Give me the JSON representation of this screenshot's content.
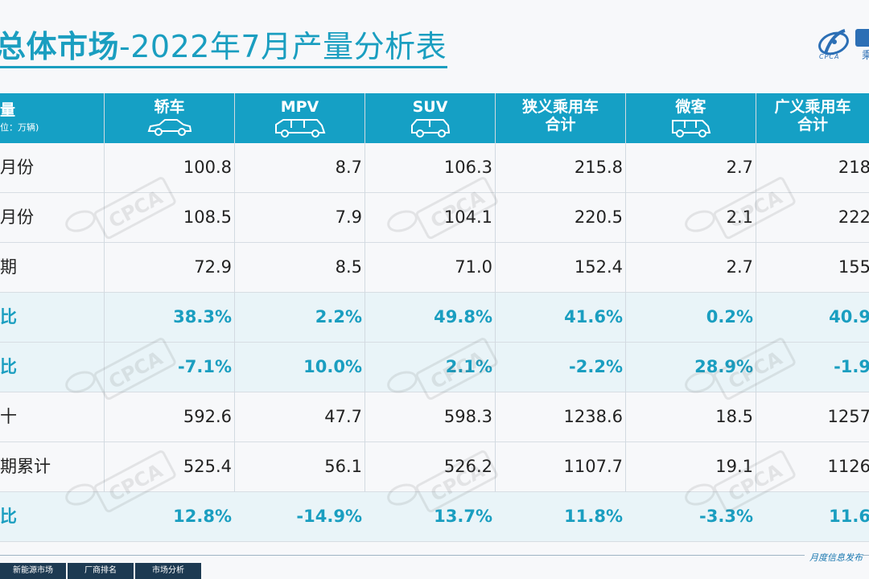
{
  "title": {
    "bold": "总体市场",
    "rest": "-2022年7月产量分析表"
  },
  "logo": {
    "text": "乘",
    "sub": "CPCA"
  },
  "watermark_text": "CPCA",
  "header": {
    "first": "量",
    "unit": "位：万辆)",
    "cols": [
      {
        "label": "轿车",
        "icon": "sedan-icon"
      },
      {
        "label": "MPV",
        "icon": "mpv-icon"
      },
      {
        "label": "SUV",
        "icon": "suv-icon"
      },
      {
        "label1": "狭义乘用车",
        "label2": "合计"
      },
      {
        "label": "微客",
        "icon": "minivan-icon"
      },
      {
        "label1": "广义乘用车",
        "label2": "合计"
      }
    ]
  },
  "rows": [
    {
      "label": "月份",
      "values": [
        "100.8",
        "8.7",
        "106.3",
        "215.8",
        "2.7",
        "218"
      ],
      "hl": false
    },
    {
      "label": "月份",
      "values": [
        "108.5",
        "7.9",
        "104.1",
        "220.5",
        "2.1",
        "222"
      ],
      "hl": false
    },
    {
      "label": "期",
      "values": [
        "72.9",
        "8.5",
        "71.0",
        "152.4",
        "2.7",
        "155"
      ],
      "hl": false
    },
    {
      "label": "比",
      "values": [
        "38.3%",
        "2.2%",
        "49.8%",
        "41.6%",
        "0.2%",
        "40.9"
      ],
      "hl": true
    },
    {
      "label": "比",
      "values": [
        "-7.1%",
        "10.0%",
        "2.1%",
        "-2.2%",
        "28.9%",
        "-1.9"
      ],
      "hl": true
    },
    {
      "label": "十",
      "values": [
        "592.6",
        "47.7",
        "598.3",
        "1238.6",
        "18.5",
        "1257"
      ],
      "hl": false
    },
    {
      "label": "期累计",
      "values": [
        "525.4",
        "56.1",
        "526.2",
        "1107.7",
        "19.1",
        "1126"
      ],
      "hl": false
    },
    {
      "label": "比",
      "values": [
        "12.8%",
        "-14.9%",
        "13.7%",
        "11.8%",
        "-3.3%",
        "11.6"
      ],
      "hl": true
    }
  ],
  "footer": {
    "right": "月度信息发布",
    "tabs": [
      "新能源市场",
      "厂商排名",
      "市场分析"
    ]
  }
}
